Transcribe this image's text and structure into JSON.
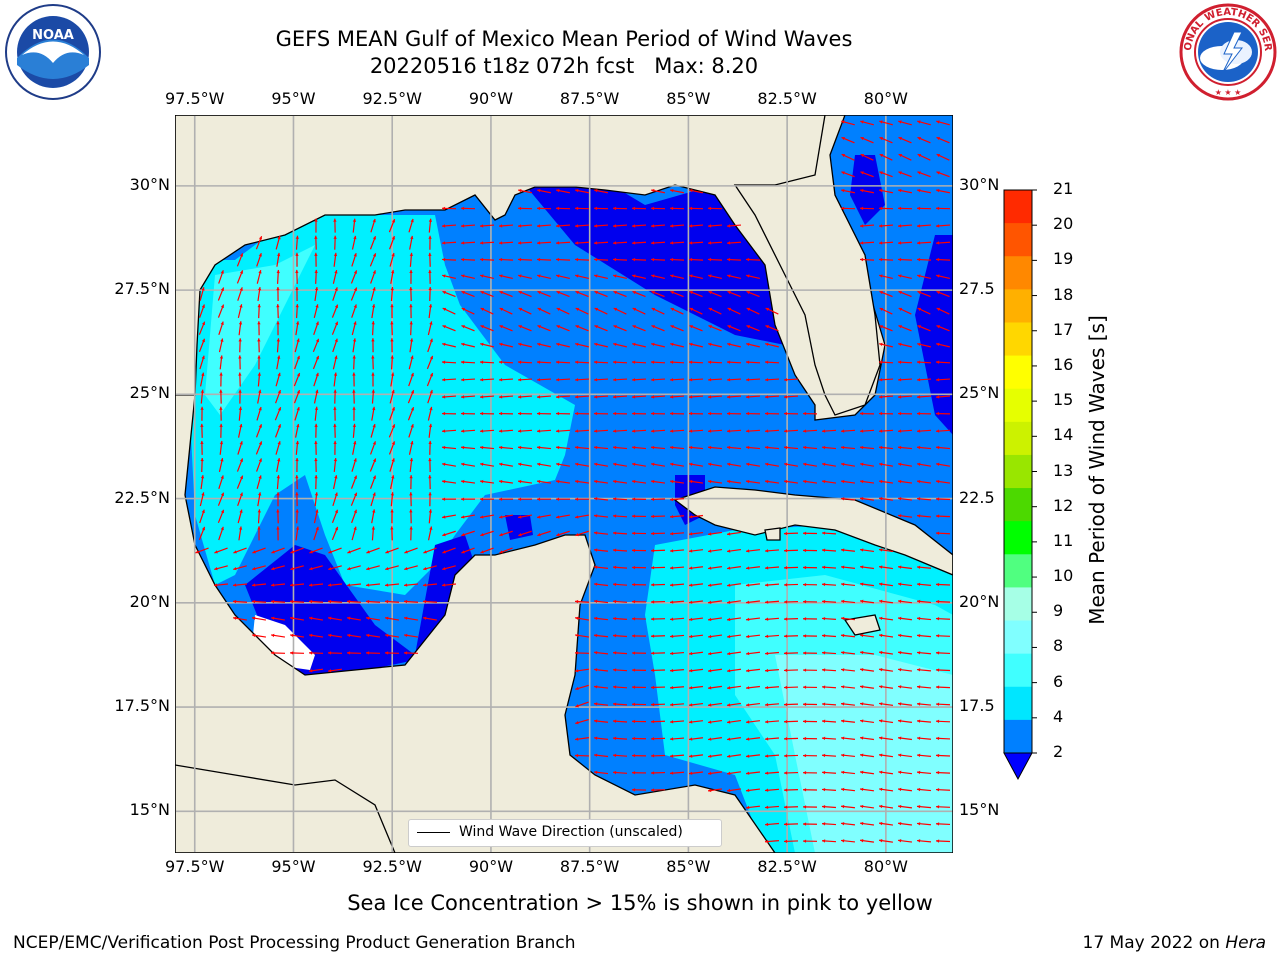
{
  "title": {
    "line1": "GEFS MEAN Gulf of Mexico Mean Period of Wind Waves",
    "line2": "20220516 t18z 072h fcst   Max: 8.20"
  },
  "logos": {
    "left": "NOAA",
    "left_ring": "NATIONAL OCEANIC AND ATMOSPHERIC ADMINISTRATION · U.S. DEPARTMENT OF COMMERCE",
    "right_ring": "NATIONAL WEATHER SERVICE"
  },
  "axes": {
    "lon_ticks": [
      "97.5°W",
      "95°W",
      "92.5°W",
      "90°W",
      "87.5°W",
      "85°W",
      "82.5°W",
      "80°W"
    ],
    "lat_ticks": [
      "30°N",
      "27.5°N",
      "25°N",
      "22.5°N",
      "20°N",
      "17.5°N",
      "15°N"
    ],
    "right_lat_ticks": [
      "30°N",
      "27.5",
      "25°N",
      "22.5",
      "20°N",
      "17.5",
      "15°N"
    ]
  },
  "map": {
    "extent": {
      "lon": [
        -98,
        -78.3
      ],
      "lat": [
        14,
        31.7
      ]
    },
    "grid": true,
    "arrow_color": "#ff0000",
    "land_color": "#efecdb",
    "ocean_base_color": "#0080ff"
  },
  "legend": {
    "label": "Wind Wave Direction (unscaled)"
  },
  "colorbar": {
    "label": "Mean Period of Wind Waves [s]",
    "ticks": [
      "2",
      "4",
      "6",
      "8",
      "9",
      "10",
      "11",
      "12",
      "13",
      "14",
      "15",
      "16",
      "17",
      "18",
      "19",
      "20",
      "21"
    ],
    "colors": [
      "#0080ff",
      "#00e6ff",
      "#40ffff",
      "#80ffff",
      "#a6ffe6",
      "#50ff80",
      "#00ff00",
      "#4cd900",
      "#99e600",
      "#ccf200",
      "#e6ff00",
      "#ffff00",
      "#ffd700",
      "#ffb000",
      "#ff8800",
      "#ff5500",
      "#ff2a00",
      "#ff0000"
    ],
    "extend_min_color": "#0000ff"
  },
  "note": "Sea Ice Concentration > 15% is shown in pink to yellow",
  "footer": {
    "left": "NCEP/EMC/Verification Post Processing Product Generation Branch",
    "right_date": "17 May 2022 on",
    "right_host": "Hera"
  }
}
